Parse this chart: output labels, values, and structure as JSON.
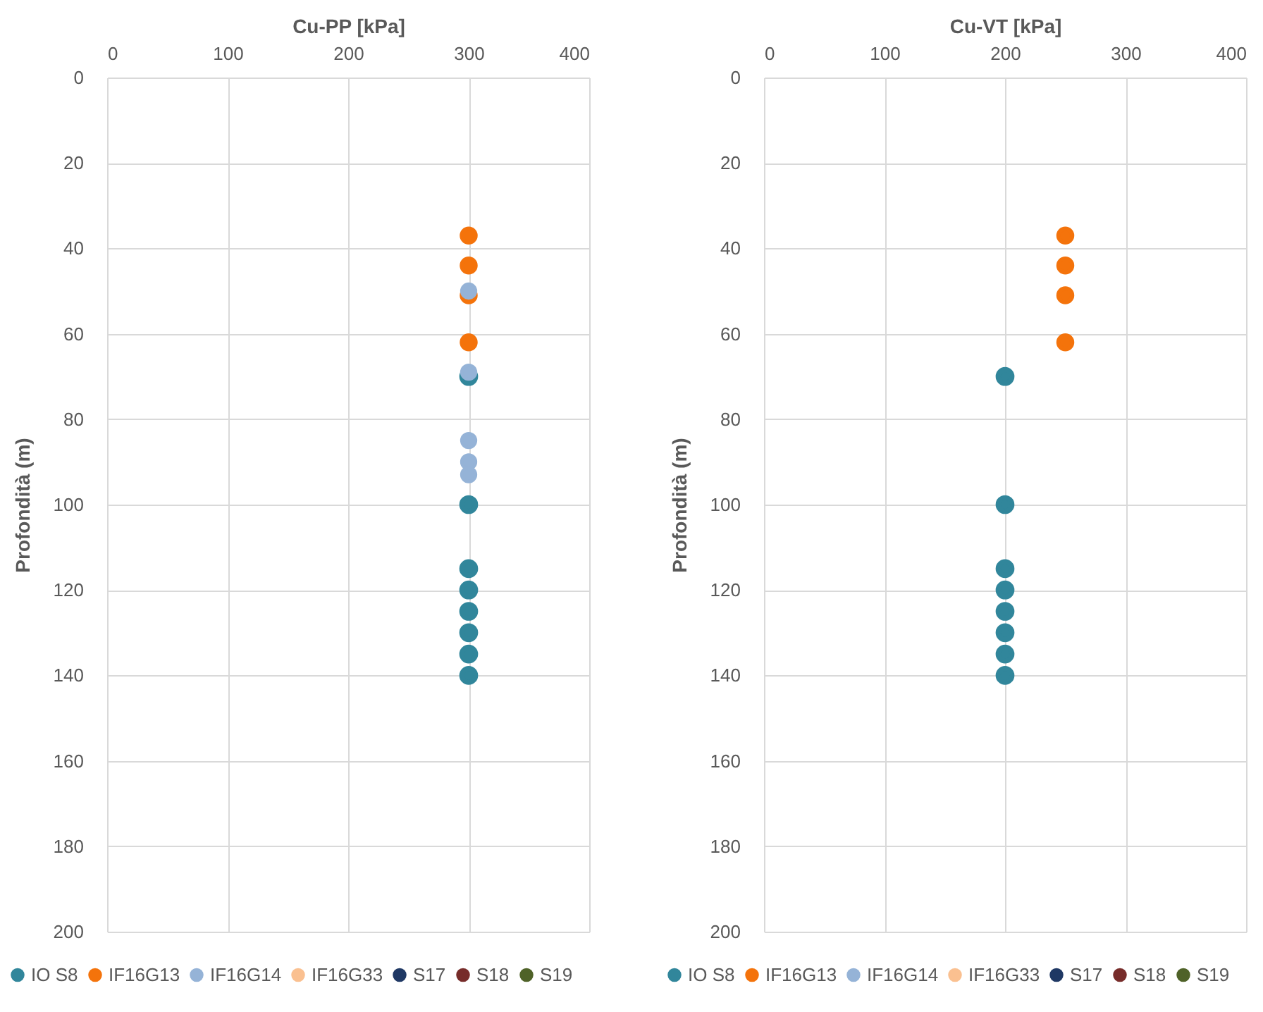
{
  "chart_data": [
    {
      "type": "scatter",
      "xlabel": "Cu-PP [kPa]",
      "ylabel": "Profondità (m)",
      "xlim": [
        0,
        400
      ],
      "xticks": [
        0,
        100,
        200,
        300,
        400
      ],
      "ylim": [
        200,
        0
      ],
      "yticks": [
        0,
        20,
        40,
        60,
        80,
        100,
        120,
        140,
        160,
        180,
        200
      ],
      "grid": true,
      "legend": "bottom",
      "marker": "circle",
      "series": [
        {
          "name": "IO S8",
          "color": "#31869b",
          "x": [
            300,
            300,
            300,
            300,
            300,
            300,
            300,
            300
          ],
          "values": [
            70,
            100,
            115,
            120,
            125,
            130,
            135,
            140
          ]
        },
        {
          "name": "IF16G13",
          "color": "#f4730b",
          "x": [
            300,
            300,
            300,
            300
          ],
          "values": [
            37,
            44,
            51,
            62
          ]
        },
        {
          "name": "IF16G14",
          "color": "#95b3d7",
          "x": [
            300,
            300,
            300,
            300,
            300
          ],
          "values": [
            50,
            69,
            85,
            90,
            93
          ]
        },
        {
          "name": "IF16G33",
          "color": "#fac090"
        },
        {
          "name": "S17",
          "color": "#1f3864"
        },
        {
          "name": "S18",
          "color": "#772c2a"
        },
        {
          "name": "S19",
          "color": "#4f6228"
        }
      ]
    },
    {
      "type": "scatter",
      "xlabel": "Cu-VT [kPa]",
      "ylabel": "Profondità (m)",
      "xlim": [
        0,
        400
      ],
      "xticks": [
        0,
        100,
        200,
        300,
        400
      ],
      "ylim": [
        200,
        0
      ],
      "yticks": [
        0,
        20,
        40,
        60,
        80,
        100,
        120,
        140,
        160,
        180,
        200
      ],
      "grid": true,
      "legend": "bottom",
      "marker": "circle",
      "series": [
        {
          "name": "IO S8",
          "color": "#31869b",
          "x": [
            200,
            200,
            200,
            200,
            200,
            200,
            200,
            200
          ],
          "values": [
            70,
            100,
            115,
            120,
            125,
            130,
            135,
            140
          ]
        },
        {
          "name": "IF16G13",
          "color": "#f4730b",
          "x": [
            250,
            250,
            250,
            250
          ],
          "values": [
            37,
            44,
            51,
            62
          ]
        },
        {
          "name": "IF16G14",
          "color": "#95b3d7"
        },
        {
          "name": "IF16G33",
          "color": "#fac090"
        },
        {
          "name": "S17",
          "color": "#1f3864"
        },
        {
          "name": "S18",
          "color": "#772c2a"
        },
        {
          "name": "S19",
          "color": "#4f6228"
        }
      ]
    }
  ]
}
